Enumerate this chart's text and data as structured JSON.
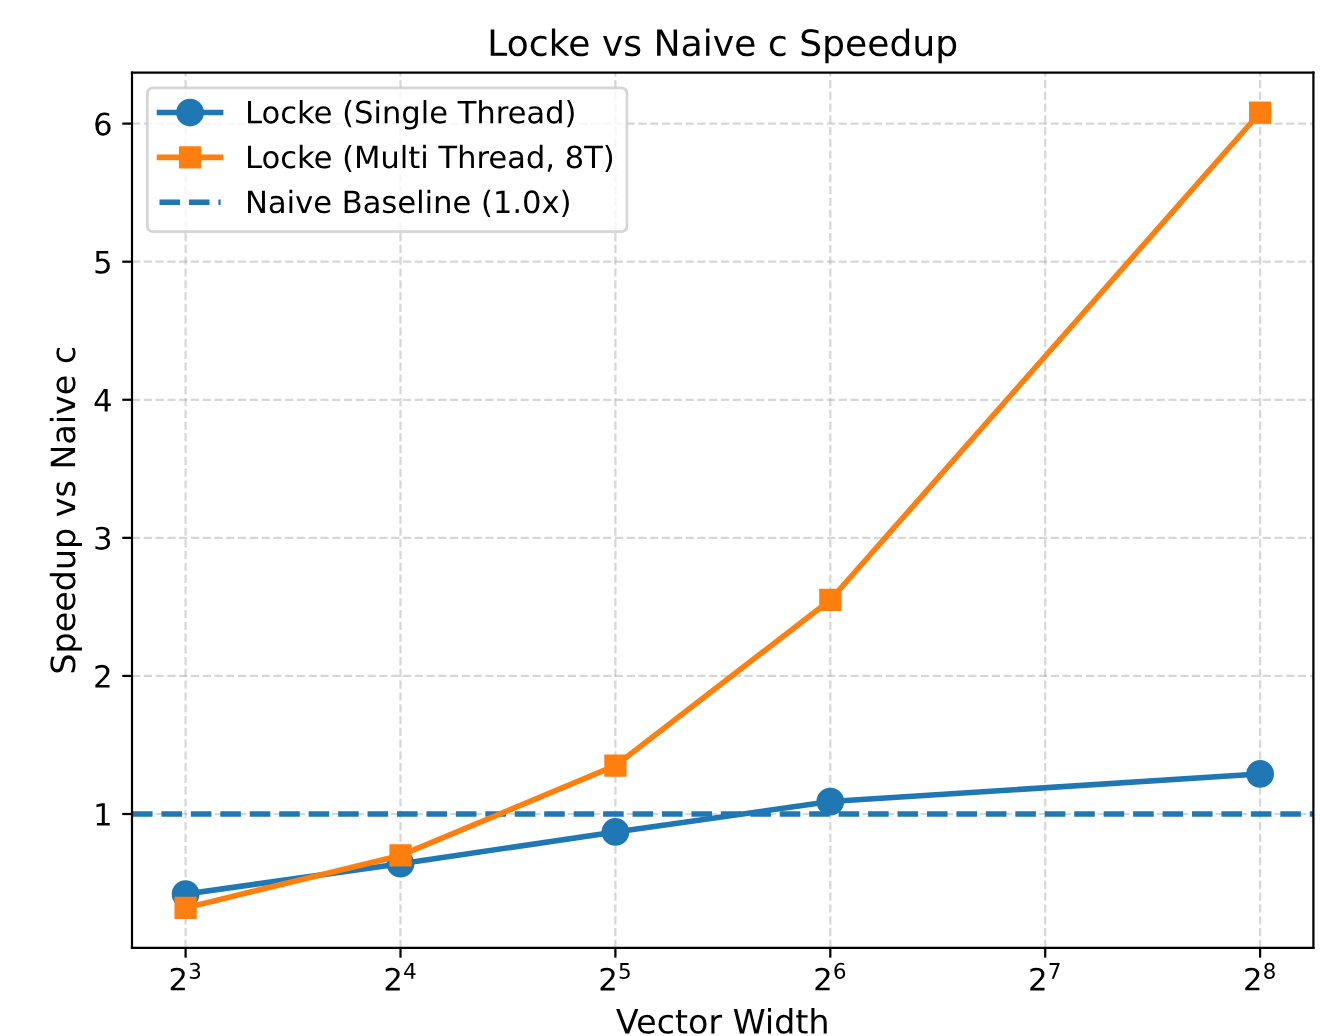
{
  "chart_data": {
    "type": "line",
    "title": "Locke vs Naive c Speedup",
    "xlabel": "Vector Width",
    "ylabel": "Speedup vs Naive c",
    "x": [
      8,
      16,
      32,
      64,
      256
    ],
    "series": [
      {
        "name": "Locke (Single Thread)",
        "color": "#1f77b4",
        "marker": "circle",
        "values": [
          0.42,
          0.64,
          0.87,
          1.09,
          1.29
        ]
      },
      {
        "name": "Locke (Multi Thread, 8T)",
        "color": "#ff7f0e",
        "marker": "square",
        "values": [
          0.32,
          0.7,
          1.35,
          2.55,
          6.08
        ]
      }
    ],
    "ref_lines": [
      {
        "axis": "y",
        "value": 1,
        "label": "Naive Baseline (1.0x)",
        "color": "#1f77b4",
        "line_style": "dashed"
      }
    ],
    "log": "x",
    "xlim": [
      6.73,
      304
    ],
    "xticks": [
      {
        "value": 8,
        "label": "2$^{3}$"
      },
      {
        "value": 16,
        "label": "2$^{4}$"
      },
      {
        "value": 32,
        "label": "2$^{5}$"
      },
      {
        "value": 64,
        "label": "2$^{6}$"
      },
      {
        "value": 128,
        "label": "2$^{7}$"
      },
      {
        "value": 256,
        "label": "2$^{8}$"
      }
    ],
    "ylim": [
      0.03,
      6.37
    ],
    "yticks": [
      1,
      2,
      3,
      4,
      5,
      6
    ],
    "grid": true,
    "legend": "top left",
    "line_style": "solid"
  }
}
